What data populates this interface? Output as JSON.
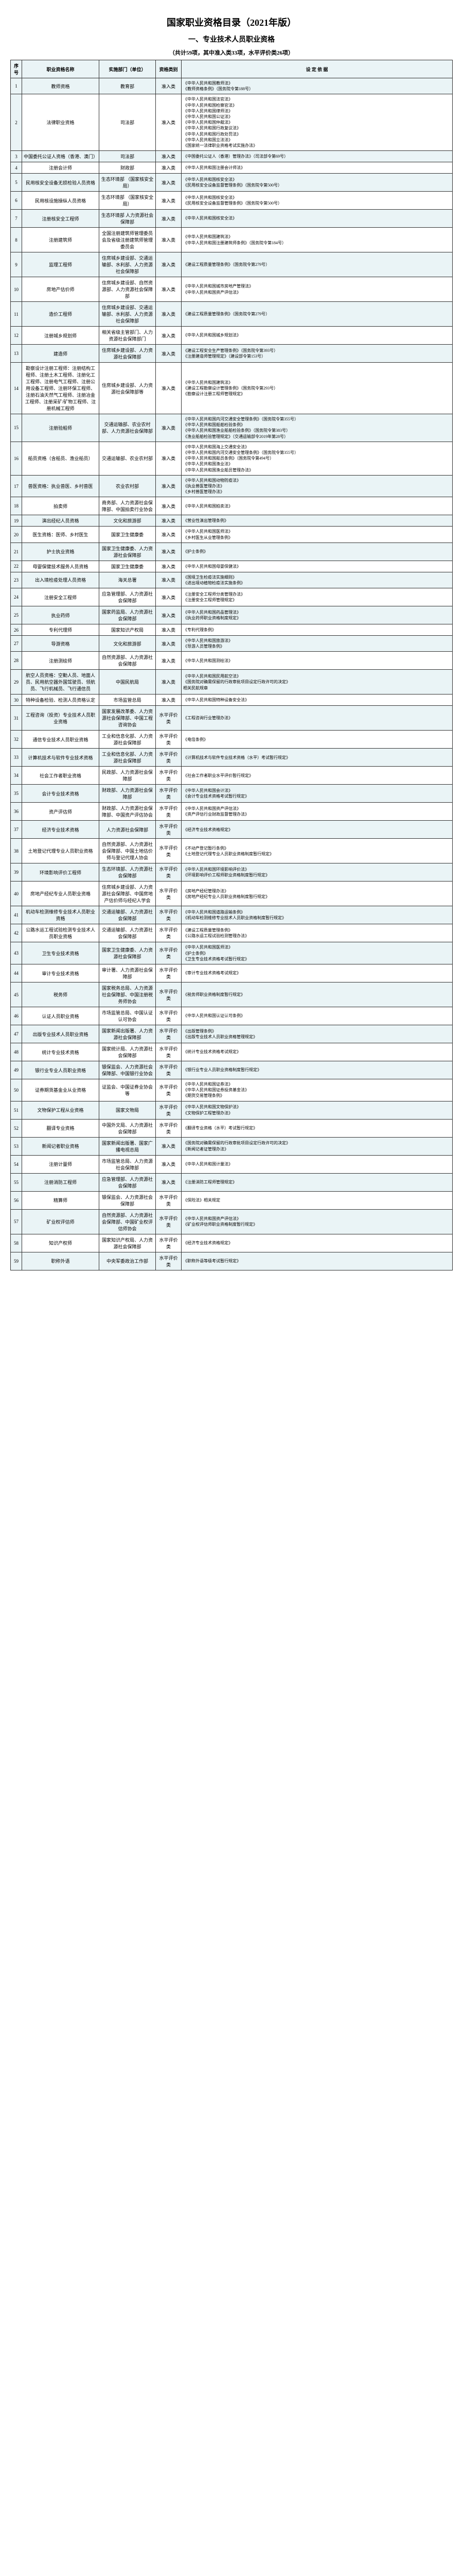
{
  "title": "国家职业资格目录（2021年版）",
  "section": "一、专业技术人员职业资格",
  "subtitle": "（共计59项，其中准入类33项，水平评价类26项）",
  "headers": {
    "seq": "序号",
    "name": "职业资格名称",
    "dept": "实施部门（单位）",
    "type": "资格类别",
    "basis": "设 定 依 据"
  },
  "rows": [
    {
      "seq": "1",
      "name": "教师资格",
      "dept": "教育部",
      "type": "准入类",
      "basis": "《中华人民共和国教师法》\n《教师资格条例》（国务院令第188号）"
    },
    {
      "seq": "2",
      "name": "法律职业资格",
      "dept": "司法部",
      "type": "准入类",
      "basis": "《中华人民共和国法官法》\n《中华人民共和国检察官法》\n《中华人民共和国律师法》\n《中华人民共和国公证法》\n《中华人民共和国仲裁法》\n《中华人民共和国行政复议法》\n《中华人民共和国行政处罚法》\n《中华人民共和国立法法》\n《国家统一法律职业资格考试实施办法》"
    },
    {
      "seq": "3",
      "name": "中国委托公证人资格（香港、澳门）",
      "dept": "司法部",
      "type": "准入类",
      "basis": "《中国委托公证人（香港）管理办法》（司法部令第69号）"
    },
    {
      "seq": "4",
      "name": "注册会计师",
      "dept": "财政部",
      "type": "准入类",
      "basis": "《中华人民共和国注册会计师法》"
    },
    {
      "seq": "5",
      "name": "民用核安全设备无损检验人员资格",
      "dept": "生态环境部\n（国家核安全局）",
      "type": "准入类",
      "basis": "《中华人民共和国核安全法》\n《民用核安全设备监督管理条例》（国务院令第500号）"
    },
    {
      "seq": "6",
      "name": "民用核设施操纵人员资格",
      "dept": "生态环境部\n（国家核安全局）",
      "type": "准入类",
      "basis": "《中华人民共和国核安全法》\n《民用核安全设备监督管理条例》（国务院令第500号）"
    },
    {
      "seq": "7",
      "name": "注册核安全工程师",
      "dept": "生态环境部\n人力资源社会保障部",
      "type": "准入类",
      "basis": "《中华人民共和国核安全法》"
    },
    {
      "seq": "8",
      "name": "注册建筑师",
      "dept": "全国注册建筑师管理委员会及省级注册建筑师管理委员会",
      "type": "准入类",
      "basis": "《中华人民共和国建筑法》\n《中华人民共和国注册建筑师条例》（国务院令第184号）"
    },
    {
      "seq": "9",
      "name": "监理工程师",
      "dept": "住房城乡建设部、交通运输部、水利部、人力资源社会保障部",
      "type": "准入类",
      "basis": "《建设工程质量管理条例》（国务院令第279号）"
    },
    {
      "seq": "10",
      "name": "房地产估价师",
      "dept": "住房城乡建设部、自然资源部、人力资源社会保障部",
      "type": "准入类",
      "basis": "《中华人民共和国城市房地产管理法》\n《中华人民共和国资产评估法》"
    },
    {
      "seq": "11",
      "name": "造价工程师",
      "dept": "住房城乡建设部、交通运输部、水利部、人力资源社会保障部",
      "type": "准入类",
      "basis": "《建设工程质量管理条例》（国务院令第279号）"
    },
    {
      "seq": "12",
      "name": "注册城乡规划师",
      "dept": "相关省级主管部门、人力资源社会保障部门",
      "type": "准入类",
      "basis": "《中华人民共和国城乡规划法》"
    },
    {
      "seq": "13",
      "name": "建造师",
      "dept": "住房城乡建设部、人力资源社会保障部",
      "type": "准入类",
      "basis": "《建设工程安全生产管理条例》（国务院令第393号）\n《注册建造师管理规定》（建设部令第153号）"
    },
    {
      "seq": "14",
      "name": "勘察设计注册工程师：注册结构工程师、注册土木工程师、注册化工工程师、注册电气工程师、注册公用设备工程师、注册环保工程师、注册石油天然气工程师、注册冶金工程师、注册采矿/矿物工程师、注册机械工程师",
      "dept": "住房城乡建设部、人力资源社会保障部等",
      "type": "准入类",
      "basis": "《中华人民共和国建筑法》\n《建设工程勘察设计管理条例》（国务院令第293号）\n《勘察设计注册工程师管理规定》"
    },
    {
      "seq": "15",
      "name": "注册验船师",
      "dept": "交通运输部、农业农村部、人力资源社会保障部",
      "type": "准入类",
      "basis": "《中华人民共和国内河交通安全管理条例》（国务院令第355号）\n《中华人民共和国船舶检验条例》\n《中华人民共和国渔业船舶检验条例》（国务院令第383号）\n《渔业船舶检验管理规定》（交通运输部令2019年第28号）"
    },
    {
      "seq": "16",
      "name": "船员资格（含船员、渔业船员）",
      "dept": "交通运输部、农业农村部",
      "type": "准入类",
      "basis": "《中华人民共和国海上交通安全法》\n《中华人民共和国内河交通安全管理条例》（国务院令第355号）\n《中华人民共和国船员条例》（国务院令第494号）\n《中华人民共和国渔业法》\n《中华人民共和国渔业船员管理办法》"
    },
    {
      "seq": "17",
      "name": "兽医资格：执业兽医、乡村兽医",
      "dept": "农业农村部",
      "type": "准入类",
      "basis": "《中华人民共和国动物防疫法》\n《执业兽医管理办法》\n《乡村兽医管理办法》"
    },
    {
      "seq": "18",
      "name": "拍卖师",
      "dept": "商务部、人力资源社会保障部、中国拍卖行业协会",
      "type": "准入类",
      "basis": "《中华人民共和国拍卖法》"
    },
    {
      "seq": "19",
      "name": "演出经纪人员资格",
      "dept": "文化和旅游部",
      "type": "准入类",
      "basis": "《营业性演出管理条例》"
    },
    {
      "seq": "20",
      "name": "医生资格：医师、乡村医生",
      "dept": "国家卫生健康委",
      "type": "准入类",
      "basis": "《中华人民共和国医师法》\n《乡村医生从业管理条例》"
    },
    {
      "seq": "21",
      "name": "护士执业资格",
      "dept": "国家卫生健康委、人力资源社会保障部",
      "type": "准入类",
      "basis": "《护士条例》"
    },
    {
      "seq": "22",
      "name": "母婴保健技术服务人员资格",
      "dept": "国家卫生健康委",
      "type": "准入类",
      "basis": "《中华人民共和国母婴保健法》"
    },
    {
      "seq": "23",
      "name": "出入境检疫处理人员资格",
      "dept": "海关总署",
      "type": "准入类",
      "basis": "《国境卫生检疫法实施细则》\n《进出境动植物检疫法实施条例》"
    },
    {
      "seq": "24",
      "name": "注册安全工程师",
      "dept": "应急管理部、人力资源社会保障部",
      "type": "准入类",
      "basis": "《注册安全工程师分类管理办法》\n《注册安全工程师管理规定》"
    },
    {
      "seq": "25",
      "name": "执业药师",
      "dept": "国家药监局、人力资源社会保障部",
      "type": "准入类",
      "basis": "《中华人民共和国药品管理法》\n《执业药师职业资格制度规定》"
    },
    {
      "seq": "26",
      "name": "专利代理师",
      "dept": "国家知识产权局",
      "type": "准入类",
      "basis": "《专利代理条例》"
    },
    {
      "seq": "27",
      "name": "导游资格",
      "dept": "文化和旅游部",
      "type": "准入类",
      "basis": "《中华人民共和国旅游法》\n《导游人员管理条例》"
    },
    {
      "seq": "28",
      "name": "注册测绘师",
      "dept": "自然资源部、人力资源社会保障部",
      "type": "准入类",
      "basis": "《中华人民共和国测绘法》"
    },
    {
      "seq": "29",
      "name": "航空人员资格：空勤人员、地面人员、民用航空器外国驾驶员、领航员、飞行机械员、飞行通信员",
      "dept": "中国民航局",
      "type": "准入类",
      "basis": "《中华人民共和国民用航空法》\n《国务院对确需保留的行政审批项目设定行政许可的决定》\n相关民航规章"
    },
    {
      "seq": "30",
      "name": "特种设备检验、检测人员资格认定",
      "dept": "市场监管总局",
      "type": "准入类",
      "basis": "《中华人民共和国特种设备安全法》"
    },
    {
      "seq": "31",
      "name": "工程咨询（投资）专业技术人员职业资格",
      "dept": "国家发展改革委、人力资源社会保障部、中国工程咨询协会",
      "type": "水平评价类",
      "basis": "《工程咨询行业管理办法》"
    },
    {
      "seq": "32",
      "name": "通信专业技术人员职业资格",
      "dept": "工业和信息化部、人力资源社会保障部",
      "type": "水平评价类",
      "basis": "《电信条例》"
    },
    {
      "seq": "33",
      "name": "计算机技术与软件专业技术资格",
      "dept": "工业和信息化部、人力资源社会保障部",
      "type": "水平评价类",
      "basis": "《计算机技术与软件专业技术资格（水平）考试暂行规定》"
    },
    {
      "seq": "34",
      "name": "社会工作者职业资格",
      "dept": "民政部、人力资源社会保障部",
      "type": "水平评价类",
      "basis": "《社会工作者职业水平评价暂行规定》"
    },
    {
      "seq": "35",
      "name": "会计专业技术资格",
      "dept": "财政部、人力资源社会保障部",
      "type": "水平评价类",
      "basis": "《中华人民共和国会计法》\n《会计专业技术资格考试暂行规定》"
    },
    {
      "seq": "36",
      "name": "资产评估师",
      "dept": "财政部、人力资源社会保障部、中国资产评估协会",
      "type": "水平评价类",
      "basis": "《中华人民共和国资产评估法》\n《资产评估行业财政监督管理办法》"
    },
    {
      "seq": "37",
      "name": "经济专业技术资格",
      "dept": "人力资源社会保障部",
      "type": "水平评价类",
      "basis": "《经济专业技术资格规定》"
    },
    {
      "seq": "38",
      "name": "土地登记代理专业人员职业资格",
      "dept": "自然资源部、人力资源社会保障部、中国土地估价师与登记代理人协会",
      "type": "水平评价类",
      "basis": "《不动产登记暂行条例》\n《土地登记代理专业人员职业资格制度暂行规定》"
    },
    {
      "seq": "39",
      "name": "环境影响评价工程师",
      "dept": "生态环境部、人力资源社会保障部",
      "type": "水平评价类",
      "basis": "《中华人民共和国环境影响评价法》\n《环境影响评价工程师职业资格制度暂行规定》"
    },
    {
      "seq": "40",
      "name": "房地产经纪专业人员职业资格",
      "dept": "住房城乡建设部、人力资源社会保障部、中国房地产估价师与经纪人学会",
      "type": "水平评价类",
      "basis": "《房地产经纪管理办法》\n《房地产经纪专业人员职业资格制度暂行规定》"
    },
    {
      "seq": "41",
      "name": "机动车检测维修专业技术人员职业资格",
      "dept": "交通运输部、人力资源社会保障部",
      "type": "水平评价类",
      "basis": "《中华人民共和国道路运输条例》\n《机动车检测维修专业技术人员职业资格制度暂行规定》"
    },
    {
      "seq": "42",
      "name": "公路水运工程试验检测专业技术人员职业资格",
      "dept": "交通运输部、人力资源社会保障部",
      "type": "水平评价类",
      "basis": "《建设工程质量管理条例》\n《公路水运工程试验检测管理办法》"
    },
    {
      "seq": "43",
      "name": "卫生专业技术资格",
      "dept": "国家卫生健康委、人力资源社会保障部",
      "type": "水平评价类",
      "basis": "《中华人民共和国医师法》\n《护士条例》\n《卫生专业技术资格考试暂行规定》"
    },
    {
      "seq": "44",
      "name": "审计专业技术资格",
      "dept": "审计署、人力资源社会保障部",
      "type": "水平评价类",
      "basis": "《审计专业技术资格考试规定》"
    },
    {
      "seq": "45",
      "name": "税务师",
      "dept": "国家税务总局、人力资源社会保障部、中国注册税务师协会",
      "type": "水平评价类",
      "basis": "《税务师职业资格制度暂行规定》"
    },
    {
      "seq": "46",
      "name": "认证人员职业资格",
      "dept": "市场监管总局、中国认证认可协会",
      "type": "水平评价类",
      "basis": "《中华人民共和国认证认可条例》"
    },
    {
      "seq": "47",
      "name": "出版专业技术人员职业资格",
      "dept": "国家新闻出版署、人力资源社会保障部",
      "type": "水平评价类",
      "basis": "《出版管理条例》\n《出版专业技术人员职业资格管理规定》"
    },
    {
      "seq": "48",
      "name": "统计专业技术资格",
      "dept": "国家统计局、人力资源社会保障部",
      "type": "水平评价类",
      "basis": "《统计专业技术资格考试规定》"
    },
    {
      "seq": "49",
      "name": "银行业专业人员职业资格",
      "dept": "银保监会、人力资源社会保障部、中国银行业协会",
      "type": "水平评价类",
      "basis": "《银行业专业人员职业资格制度暂行规定》"
    },
    {
      "seq": "50",
      "name": "证券期货基金业从业资格",
      "dept": "证监会、中国证券业协会等",
      "type": "水平评价类",
      "basis": "《中华人民共和国证券法》\n《中华人民共和国证券投资基金法》\n《期货交易管理条例》"
    },
    {
      "seq": "51",
      "name": "文物保护工程从业资格",
      "dept": "国家文物局",
      "type": "水平评价类",
      "basis": "《中华人民共和国文物保护法》\n《文物保护工程管理办法》"
    },
    {
      "seq": "52",
      "name": "翻译专业资格",
      "dept": "中国外文局、人力资源社会保障部",
      "type": "水平评价类",
      "basis": "《翻译专业资格（水平）考试暂行规定》"
    },
    {
      "seq": "53",
      "name": "新闻记者职业资格",
      "dept": "国家新闻出版署、国家广播电视总局",
      "type": "准入类",
      "basis": "《国务院对确需保留的行政审批项目设定行政许可的决定》\n《新闻记者证管理办法》"
    },
    {
      "seq": "54",
      "name": "注册计量师",
      "dept": "市场监管总局、人力资源社会保障部",
      "type": "准入类",
      "basis": "《中华人民共和国计量法》"
    },
    {
      "seq": "55",
      "name": "注册消防工程师",
      "dept": "应急管理部、人力资源社会保障部",
      "type": "准入类",
      "basis": "《注册消防工程师管理规定》"
    },
    {
      "seq": "56",
      "name": "精算师",
      "dept": "银保监会、人力资源社会保障部",
      "type": "水平评价类",
      "basis": "《保险法》相关规定"
    },
    {
      "seq": "57",
      "name": "矿业权评估师",
      "dept": "自然资源部、人力资源社会保障部、中国矿业权评估师协会",
      "type": "水平评价类",
      "basis": "《中华人民共和国资产评估法》\n《矿业权评估师职业资格制度暂行规定》"
    },
    {
      "seq": "58",
      "name": "知识产权师",
      "dept": "国家知识产权局、人力资源社会保障部",
      "type": "水平评价类",
      "basis": "《经济专业技术资格规定》"
    },
    {
      "seq": "59",
      "name": "职称外语",
      "dept": "中央军委政治工作部",
      "type": "水平评价类",
      "basis": "《职称外语等级考试暂行规定》"
    }
  ]
}
